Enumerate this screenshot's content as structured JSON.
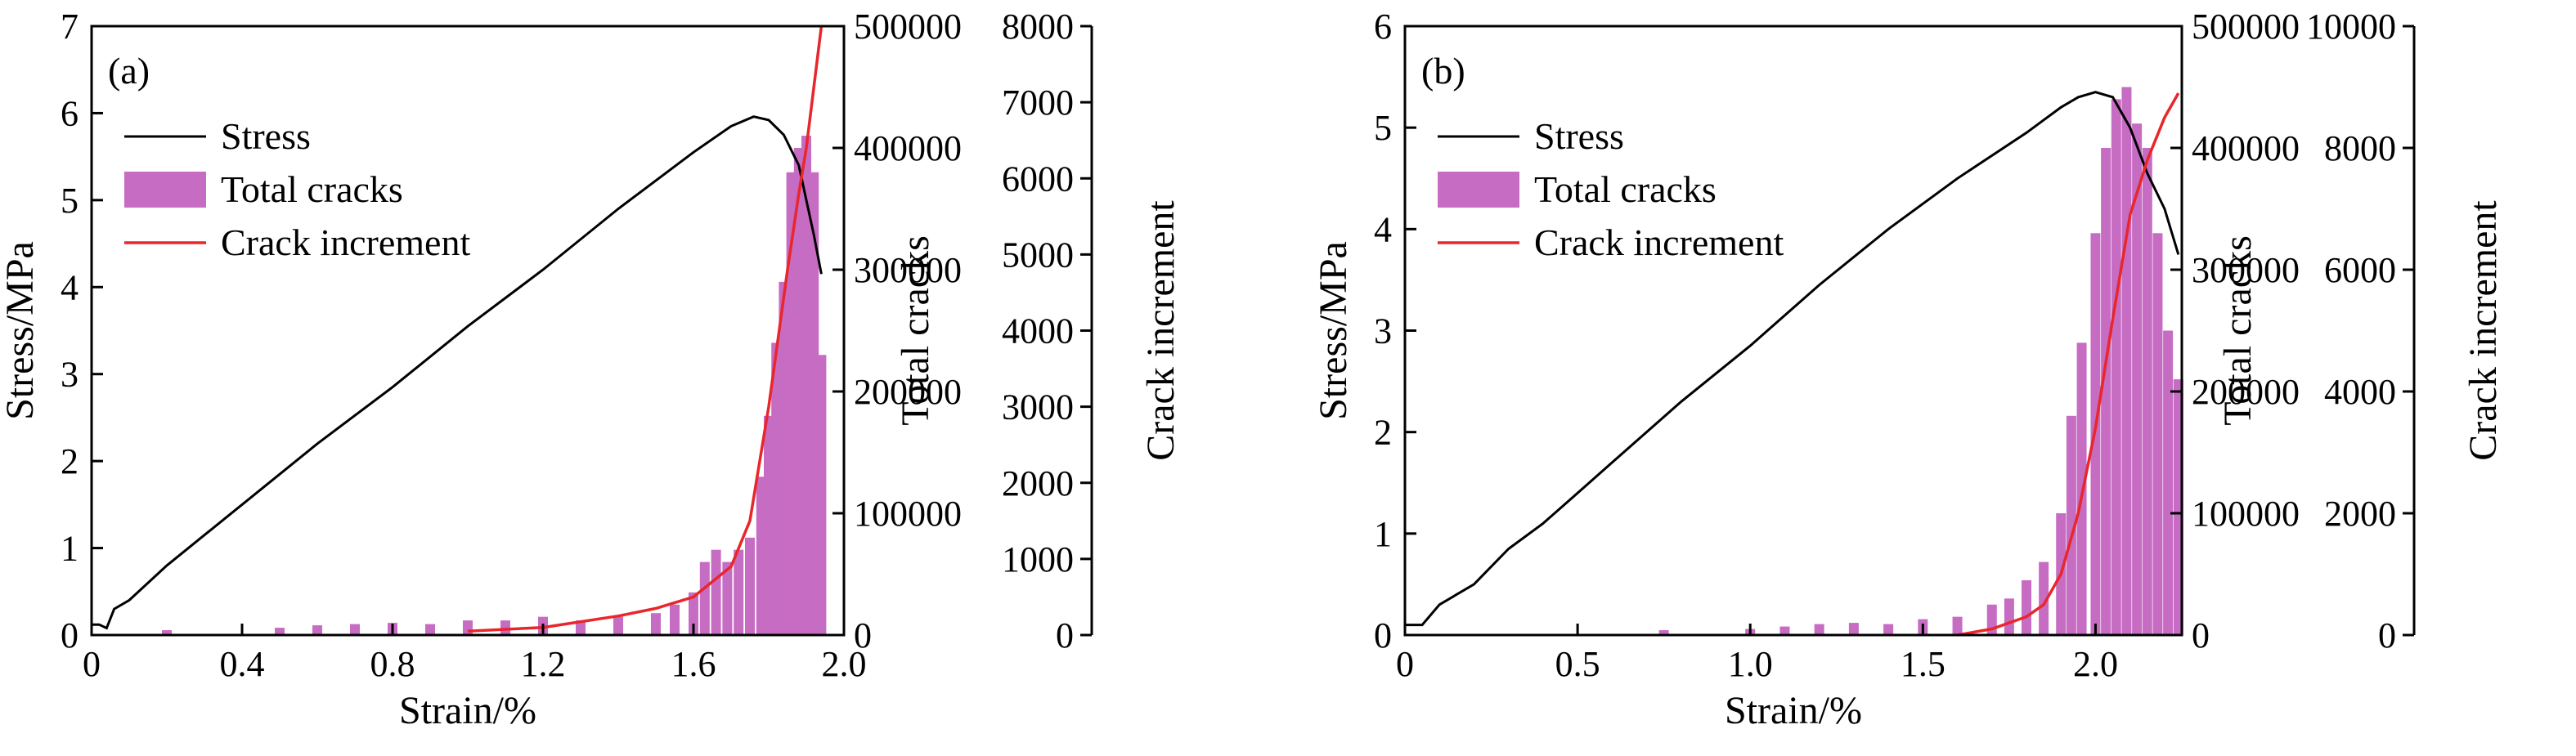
{
  "colors": {
    "stress": "#000000",
    "total_cracks": "#c76cc3",
    "crack_increment": "#e8262b",
    "axis": "#000000"
  },
  "chart_data": [
    {
      "panel_label": "(a)",
      "type": "line",
      "xlabel": "Strain/%",
      "ylabel_left": "Stress/MPa",
      "ylabel_right1": "Total cracks",
      "ylabel_right2": "Crack increment",
      "xlim": [
        0,
        2.0
      ],
      "ylim_left": [
        0,
        7
      ],
      "ylim_right1": [
        0,
        500000
      ],
      "ylim_right2": [
        0,
        8000
      ],
      "xticks": [
        "0",
        "0.4",
        "0.8",
        "1.2",
        "1.6",
        "2.0"
      ],
      "yticks_left": [
        "0",
        "1",
        "2",
        "3",
        "4",
        "5",
        "6",
        "7"
      ],
      "yticks_right1": [
        "0",
        "100000",
        "200000",
        "300000",
        "400000",
        "500000"
      ],
      "yticks_right2": [
        "0",
        "1000",
        "2000",
        "3000",
        "4000",
        "5000",
        "6000",
        "7000",
        "8000"
      ],
      "legend": {
        "position": "top-left",
        "entries": [
          "Stress",
          "Total cracks",
          "Crack increment"
        ]
      },
      "series": [
        {
          "name": "Stress",
          "type": "line",
          "axis": "left",
          "x": [
            0,
            0.02,
            0.04,
            0.06,
            0.1,
            0.2,
            0.4,
            0.6,
            0.8,
            1.0,
            1.2,
            1.4,
            1.6,
            1.7,
            1.76,
            1.8,
            1.84,
            1.88,
            1.9,
            1.92,
            1.94
          ],
          "y": [
            0.12,
            0.12,
            0.08,
            0.3,
            0.4,
            0.8,
            1.5,
            2.2,
            2.85,
            3.55,
            4.2,
            4.9,
            5.55,
            5.85,
            5.96,
            5.92,
            5.75,
            5.4,
            5.0,
            4.6,
            4.15
          ]
        },
        {
          "name": "Total cracks",
          "type": "bar",
          "axis": "right1",
          "x": [
            0.2,
            0.5,
            0.6,
            0.7,
            0.8,
            0.9,
            1.0,
            1.1,
            1.2,
            1.3,
            1.4,
            1.5,
            1.55,
            1.6,
            1.63,
            1.66,
            1.69,
            1.72,
            1.75,
            1.78,
            1.8,
            1.82,
            1.84,
            1.86,
            1.88,
            1.9,
            1.92,
            1.94
          ],
          "y": [
            4000,
            6000,
            8000,
            9000,
            10000,
            9000,
            12000,
            12000,
            15000,
            12000,
            15000,
            18000,
            25000,
            35000,
            60000,
            70000,
            60000,
            70000,
            80000,
            130000,
            180000,
            240000,
            290000,
            380000,
            400000,
            410000,
            380000,
            230000
          ]
        },
        {
          "name": "Crack increment",
          "type": "line",
          "axis": "right2",
          "x": [
            1.0,
            1.2,
            1.4,
            1.5,
            1.6,
            1.7,
            1.75,
            1.8,
            1.85,
            1.88,
            1.9,
            1.92,
            1.94
          ],
          "y": [
            50,
            100,
            250,
            350,
            500,
            900,
            1500,
            3000,
            4800,
            5800,
            6400,
            7200,
            8000
          ]
        }
      ]
    },
    {
      "panel_label": "(b)",
      "type": "line",
      "xlabel": "Strain/%",
      "ylabel_left": "Stress/MPa",
      "ylabel_right1": "Total cracks",
      "ylabel_right2": "Crack increment",
      "xlim": [
        0,
        2.25
      ],
      "ylim_left": [
        0,
        6
      ],
      "ylim_right1": [
        0,
        500000
      ],
      "ylim_right2": [
        0,
        10000
      ],
      "xticks": [
        "0",
        "0.5",
        "1.0",
        "1.5",
        "2.0"
      ],
      "yticks_left": [
        "0",
        "1",
        "2",
        "3",
        "4",
        "5",
        "6"
      ],
      "yticks_right1": [
        "0",
        "100000",
        "200000",
        "300000",
        "400000",
        "500000"
      ],
      "yticks_right2": [
        "0",
        "2000",
        "4000",
        "6000",
        "8000",
        "10000"
      ],
      "legend": {
        "position": "top-left",
        "entries": [
          "Stress",
          "Total cracks",
          "Crack increment"
        ]
      },
      "series": [
        {
          "name": "Stress",
          "type": "line",
          "axis": "left",
          "x": [
            0,
            0.05,
            0.1,
            0.2,
            0.3,
            0.4,
            0.5,
            0.6,
            0.8,
            1.0,
            1.2,
            1.4,
            1.6,
            1.8,
            1.9,
            1.95,
            2.0,
            2.05,
            2.1,
            2.15,
            2.2,
            2.24
          ],
          "y": [
            0.1,
            0.1,
            0.3,
            0.5,
            0.85,
            1.1,
            1.4,
            1.7,
            2.3,
            2.85,
            3.45,
            4.0,
            4.5,
            4.95,
            5.2,
            5.3,
            5.35,
            5.3,
            5.0,
            4.55,
            4.2,
            3.75
          ]
        },
        {
          "name": "Total cracks",
          "type": "bar",
          "axis": "right1",
          "x": [
            0.75,
            1.0,
            1.1,
            1.2,
            1.3,
            1.4,
            1.5,
            1.6,
            1.7,
            1.75,
            1.8,
            1.85,
            1.9,
            1.93,
            1.96,
            2.0,
            2.03,
            2.06,
            2.09,
            2.12,
            2.15,
            2.18,
            2.21,
            2.24
          ],
          "y": [
            4000,
            5000,
            7000,
            9000,
            10000,
            9000,
            13000,
            15000,
            25000,
            30000,
            45000,
            60000,
            100000,
            180000,
            240000,
            330000,
            400000,
            440000,
            450000,
            420000,
            400000,
            330000,
            250000,
            210000
          ]
        },
        {
          "name": "Crack increment",
          "type": "line",
          "axis": "right2",
          "x": [
            1.6,
            1.7,
            1.8,
            1.85,
            1.9,
            1.95,
            2.0,
            2.05,
            2.1,
            2.15,
            2.2,
            2.24
          ],
          "y": [
            0,
            100,
            300,
            500,
            1000,
            2000,
            3400,
            5200,
            6900,
            7800,
            8500,
            8900
          ]
        }
      ]
    }
  ]
}
